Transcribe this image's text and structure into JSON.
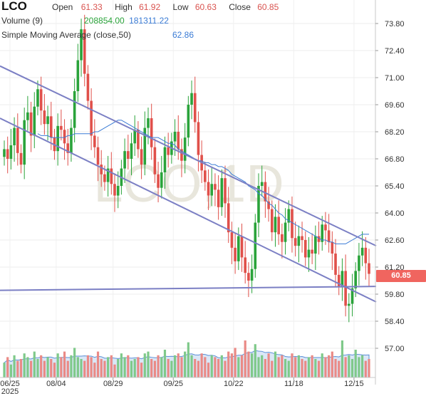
{
  "header": {
    "ticker": "LCO",
    "open_label": "Open",
    "open_value": "61.33",
    "high_label": "High",
    "high_value": "61.92",
    "low_label": "Low",
    "low_value": "60.63",
    "close_label": "Close",
    "close_value": "60.85",
    "volume_label": "Volume (9)",
    "volume_value": "208854.00",
    "volume_avg": "181311.22",
    "sma_label": "Simple Moving Average (close,50)",
    "sma_value": "62.86"
  },
  "watermark": "LCO,1D",
  "last_price_tag": "60.85",
  "colors": {
    "up": "#2aa33a",
    "down": "#e0504a",
    "sma": "#3a7bd5",
    "trendline": "#7b7fc4",
    "tag": "#f0655f"
  },
  "chart_data": {
    "type": "candlestick",
    "title": "LCO",
    "x_ticks": [
      "06/25",
      "08/04",
      "08/29",
      "09/25",
      "10/22",
      "11/18",
      "12/15"
    ],
    "x_sublabel": "2025",
    "y_ticks": [
      "73.80",
      "72.40",
      "71.00",
      "69.60",
      "68.20",
      "66.80",
      "65.40",
      "64.00",
      "62.60",
      "61.20",
      "59.80",
      "58.40",
      "57.00"
    ],
    "ylim": [
      56.4,
      74.5
    ],
    "last_close": 60.85,
    "closes": [
      67.3,
      66.8,
      67.5,
      68.4,
      67.1,
      66.5,
      68.8,
      69.2,
      68.0,
      69.5,
      70.4,
      69.3,
      68.6,
      69.0,
      67.9,
      67.2,
      68.5,
      68.3,
      67.6,
      67.1,
      68.4,
      70.3,
      71.9,
      73.5,
      71.2,
      69.8,
      68.0,
      67.4,
      66.5,
      66.0,
      65.6,
      66.3,
      65.5,
      64.9,
      65.4,
      66.3,
      67.2,
      66.8,
      67.6,
      68.3,
      67.3,
      66.5,
      68.4,
      68.9,
      67.4,
      66.0,
      65.3,
      66.1,
      67.4,
      67.0,
      67.7,
      68.2,
      67.3,
      66.7,
      67.9,
      69.6,
      70.2,
      68.7,
      67.0,
      66.2,
      65.6,
      64.9,
      65.5,
      65.2,
      64.3,
      65.8,
      64.5,
      63.0,
      62.2,
      61.5,
      62.8,
      61.7,
      60.9,
      60.5,
      61.1,
      63.5,
      65.4,
      65.6,
      64.6,
      64.2,
      63.0,
      63.8,
      62.9,
      62.5,
      63.5,
      64.2,
      62.7,
      62.3,
      62.8,
      62.6,
      61.7,
      62.1,
      61.9,
      62.8,
      62.5,
      63.4,
      63.1,
      62.5,
      61.9,
      60.8,
      60.2,
      61.0,
      59.2,
      59.3,
      60.1,
      61.0,
      61.8,
      62.2,
      61.4,
      60.85
    ],
    "sma": [
      68.1,
      68.0,
      68.0,
      68.0,
      67.9,
      67.9,
      67.9,
      67.9,
      67.9,
      68.0,
      68.0,
      68.1,
      68.1,
      68.1,
      68.1,
      68.1,
      68.1,
      68.2,
      68.2,
      68.3,
      68.4,
      68.5,
      68.6,
      68.7,
      68.8,
      68.8,
      68.7,
      68.6,
      68.5,
      68.4,
      68.3,
      68.2,
      68.1,
      68.0,
      67.9,
      67.9,
      67.9,
      67.8,
      67.7,
      67.6,
      67.6,
      67.5,
      67.3,
      67.2,
      67.1,
      67.0,
      66.9,
      66.8,
      66.7,
      66.7,
      66.6,
      66.6,
      66.5,
      66.5,
      66.4,
      66.4,
      66.3,
      66.2,
      66.0,
      65.9,
      65.8,
      65.7,
      65.6,
      65.4,
      65.3,
      65.2,
      65.0,
      64.9,
      64.7,
      64.5,
      64.4,
      64.2,
      64.0,
      63.9,
      63.7,
      63.6,
      63.5,
      63.4,
      63.3,
      63.2,
      63.1,
      63.0,
      62.9,
      62.8,
      62.7,
      62.6,
      62.6,
      62.5,
      62.5,
      62.4,
      62.4,
      62.4,
      62.4,
      62.5,
      62.6,
      62.7,
      62.8,
      62.9,
      62.9,
      62.9
    ],
    "volume": [
      40,
      55,
      35,
      60,
      45,
      50,
      65,
      55,
      45,
      70,
      50,
      60,
      45,
      55,
      50,
      40,
      65,
      55,
      70,
      45,
      60,
      80,
      55,
      50,
      45,
      60,
      55,
      40,
      70,
      50,
      45,
      55,
      60,
      35,
      50,
      65,
      55,
      60,
      45,
      50,
      55,
      40,
      65,
      70,
      50,
      45,
      60,
      55,
      75,
      50,
      45,
      60,
      65,
      55,
      70,
      95,
      60,
      50,
      45,
      65,
      55,
      40,
      60,
      55,
      50,
      60,
      45,
      70,
      65,
      80,
      55,
      60,
      100,
      70,
      65,
      90,
      55,
      60,
      50,
      65,
      45,
      70,
      55,
      60,
      50,
      45,
      65,
      55,
      60,
      50,
      45,
      55,
      60,
      50,
      45,
      65,
      55,
      60,
      70,
      50,
      45,
      100,
      55,
      60,
      50,
      75,
      55,
      60,
      45,
      50
    ],
    "trendlines": [
      {
        "from": [
          0,
          71.6
        ],
        "to": [
          109,
          62.3
        ]
      },
      {
        "from": [
          0,
          68.9
        ],
        "to": [
          109,
          59.4
        ]
      },
      {
        "from": [
          0,
          60.0
        ],
        "to": [
          109,
          60.2
        ]
      }
    ]
  }
}
